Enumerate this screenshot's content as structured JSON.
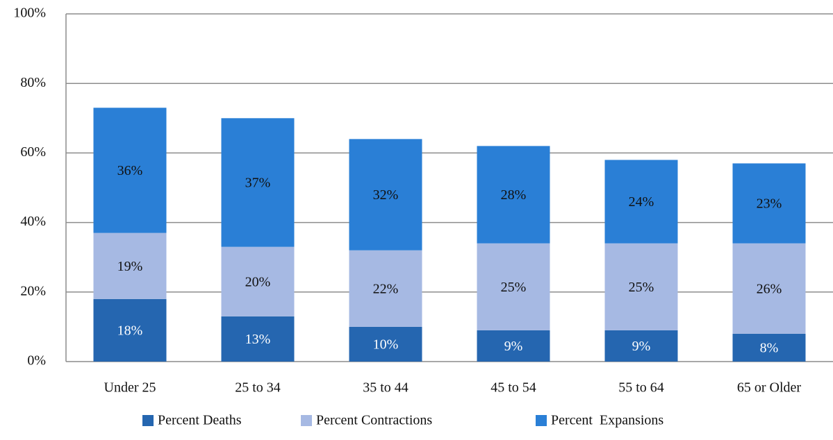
{
  "chart_data": {
    "type": "stacked_bar",
    "categories": [
      "Under 25",
      "25 to 34",
      "35 to 44",
      "45 to 54",
      "55 to 64",
      "65 or Older"
    ],
    "series": [
      {
        "name": "Percent Deaths",
        "color": "#2566b0",
        "values": [
          18,
          13,
          10,
          9,
          9,
          8
        ],
        "value_labels": [
          "18%",
          "13%",
          "10%",
          "9%",
          "9%",
          "8%"
        ]
      },
      {
        "name": "Percent Contractions",
        "color": "#a6b9e3",
        "values": [
          19,
          20,
          22,
          25,
          25,
          26
        ],
        "value_labels": [
          "19%",
          "20%",
          "22%",
          "25%",
          "25%",
          "26%"
        ]
      },
      {
        "name": "Percent  Expansions",
        "color": "#2a7fd6",
        "values": [
          36,
          37,
          32,
          28,
          24,
          23
        ],
        "value_labels": [
          "36%",
          "37%",
          "32%",
          "28%",
          "24%",
          "23%"
        ]
      }
    ],
    "ylim": [
      0,
      100
    ],
    "yticks": [
      {
        "value": 0,
        "label": "0%"
      },
      {
        "value": 20,
        "label": "20%"
      },
      {
        "value": 40,
        "label": "40%"
      },
      {
        "value": 60,
        "label": "60%"
      },
      {
        "value": 80,
        "label": "80%"
      },
      {
        "value": 100,
        "label": "100%"
      }
    ],
    "grid": true,
    "legend": "bottom"
  }
}
